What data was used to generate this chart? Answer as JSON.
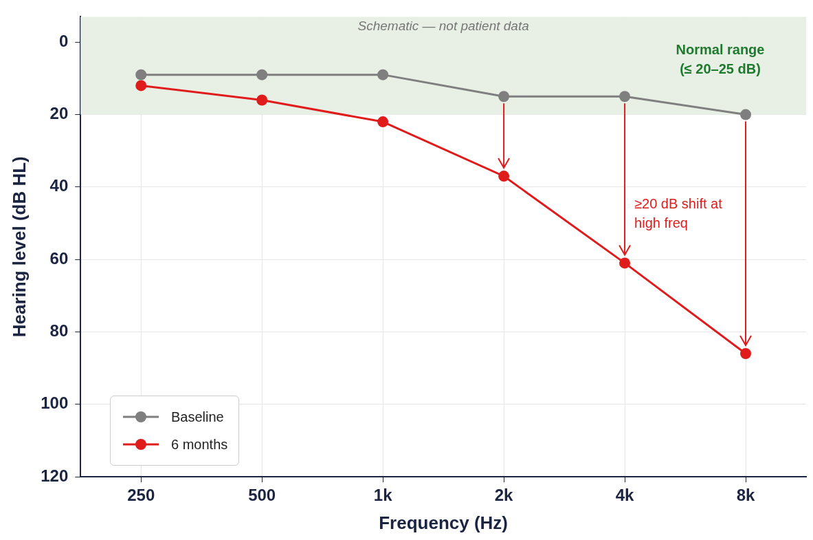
{
  "chart_data": {
    "type": "line",
    "xlabel": "Frequency (Hz)",
    "ylabel": "Hearing level (dB HL)",
    "categories": [
      "250",
      "500",
      "1k",
      "2k",
      "4k",
      "8k"
    ],
    "series": [
      {
        "name": "Baseline",
        "color": "#7f7f7f",
        "values": [
          9,
          9,
          9,
          15,
          15,
          20
        ]
      },
      {
        "name": "6 months",
        "color": "#e01b1b",
        "values": [
          12,
          16,
          22,
          37,
          61,
          86
        ]
      }
    ],
    "ylim": [
      120,
      -7
    ],
    "yticks": [
      0,
      20,
      40,
      60,
      80,
      100,
      120
    ],
    "bands": [
      {
        "axis": "y",
        "from": -7,
        "to": 20,
        "label": "Normal range (≤ 20–25 dB)",
        "color": "#e8efe4"
      }
    ],
    "annotations": [
      "Schematic — not patient data",
      "≥20 dB shift at high freq"
    ],
    "grid": true,
    "legend": "bottom left",
    "marker": "circle",
    "line_style": "solid"
  }
}
